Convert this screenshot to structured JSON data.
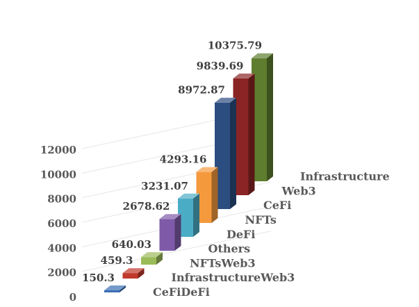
{
  "chart_data": {
    "type": "bar",
    "style": "3d-column",
    "categories": [
      "CeFiDeFi",
      "InfrastructureWeb3",
      "NFTsWeb3",
      "Others",
      "DeFi",
      "NFTs",
      "CeFi",
      "Web3",
      "Infrastructure"
    ],
    "values": [
      150.3,
      459.3,
      640.03,
      2678.62,
      3231.07,
      4293.16,
      8972.87,
      9839.69,
      10375.79
    ],
    "value_labels": [
      "150.3",
      "459.3",
      "640.03",
      "2678.62",
      "3231.07",
      "4293.16",
      "8972.87",
      "9839.69",
      "10375.79"
    ],
    "colors": [
      "#3a6fb5",
      "#c0392b",
      "#9bbb59",
      "#7e5aa8",
      "#4bacc6",
      "#f59a3c",
      "#2b4d80",
      "#8b2424",
      "#5e7d2e"
    ],
    "ylim": [
      0,
      12000
    ],
    "y_ticks": [
      "0",
      "2000",
      "4000",
      "6000",
      "8000",
      "10000",
      "12000"
    ],
    "grid": true,
    "legend": "none"
  }
}
